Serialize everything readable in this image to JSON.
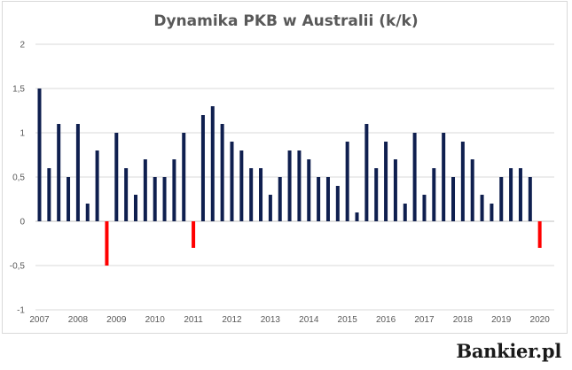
{
  "brand": {
    "name": "Bankier.pl"
  },
  "colors": {
    "positive": "#0f1f4f",
    "negative": "#ff0000",
    "grid": "#d9d9d9",
    "axis": "#bfbfbf"
  },
  "chart_data": {
    "type": "bar",
    "title": "Dynamika PKB w Australii (k/k)",
    "xlabel": "",
    "ylabel": "",
    "ylim": [
      -1,
      2
    ],
    "yticks": [
      2,
      1.5,
      1,
      0.5,
      0,
      -0.5,
      -1
    ],
    "ytick_labels": [
      "2",
      "1,5",
      "1",
      "0,5",
      "0",
      "-0,5",
      "-1"
    ],
    "xtick_labels": [
      "2007",
      "2008",
      "2009",
      "2010",
      "2011",
      "2012",
      "2013",
      "2014",
      "2015",
      "2016",
      "2017",
      "2018",
      "2019",
      "2020"
    ],
    "grid": true,
    "legend": "none",
    "values": [
      1.5,
      0.6,
      1.1,
      0.5,
      1.1,
      0.2,
      0.8,
      -0.5,
      1.0,
      0.6,
      0.3,
      0.7,
      0.5,
      0.5,
      0.7,
      1.0,
      -0.3,
      1.2,
      1.3,
      1.1,
      0.9,
      0.8,
      0.6,
      0.6,
      0.3,
      0.5,
      0.8,
      0.8,
      0.7,
      0.5,
      0.5,
      0.4,
      0.9,
      0.1,
      1.1,
      0.6,
      0.9,
      0.7,
      0.2,
      1.0,
      0.3,
      0.6,
      1.0,
      0.5,
      0.9,
      0.7,
      0.3,
      0.2,
      0.5,
      0.6,
      0.6,
      0.5,
      -0.3
    ]
  }
}
